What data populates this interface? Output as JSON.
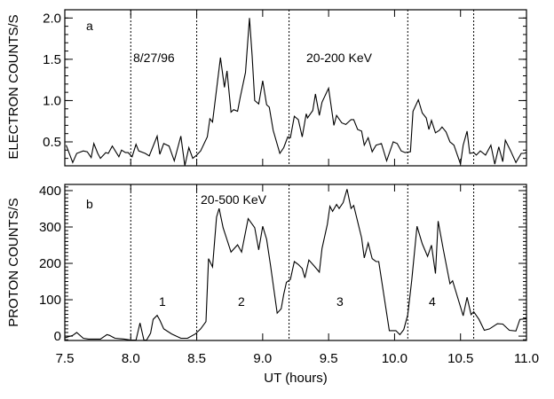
{
  "chart_data": [
    {
      "panel": "a",
      "type": "line",
      "panel_label": "a",
      "ylabel": "ELECTRON COUNTS/S",
      "xlabel": "",
      "xlim": [
        7.5,
        11.0
      ],
      "ylim": [
        0.21,
        2.1
      ],
      "yticks": [
        0.5,
        1.0,
        1.5,
        2.0
      ],
      "ytick_labels": [
        "0.5",
        "1.0",
        "1.5",
        "2.0"
      ],
      "yminor_step": 0.1,
      "annotations": [
        {
          "text": "8/27/96"
        },
        {
          "text": "20-200 KeV"
        }
      ],
      "vlines": [
        8.0,
        8.5,
        9.2,
        10.1,
        10.6
      ],
      "series": [
        {
          "name": "electrons 20-200 KeV",
          "x": [
            7.51,
            7.56,
            7.59,
            7.64,
            7.67,
            7.7,
            7.72,
            7.75,
            7.77,
            7.81,
            7.83,
            7.86,
            7.91,
            7.93,
            7.96,
            7.98,
            8.01,
            8.04,
            8.06,
            8.11,
            8.14,
            8.2,
            8.22,
            8.25,
            8.29,
            8.33,
            8.38,
            8.41,
            8.44,
            8.47,
            8.5,
            8.53,
            8.58,
            8.6,
            8.62,
            8.68,
            8.71,
            8.73,
            8.76,
            8.78,
            8.81,
            8.83,
            8.87,
            8.9,
            8.92,
            8.94,
            8.97,
            9.0,
            9.03,
            9.05,
            9.08,
            9.13,
            9.16,
            9.19,
            9.21,
            9.24,
            9.27,
            9.3,
            9.33,
            9.34,
            9.38,
            9.4,
            9.43,
            9.45,
            9.5,
            9.54,
            9.56,
            9.6,
            9.63,
            9.67,
            9.69,
            9.72,
            9.75,
            9.77,
            9.8,
            9.83,
            9.86,
            9.9,
            9.94,
            9.99,
            10.02,
            10.05,
            10.08,
            10.12,
            10.14,
            10.18,
            10.21,
            10.24,
            10.26,
            10.28,
            10.31,
            10.34,
            10.36,
            10.39,
            10.42,
            10.45,
            10.5,
            10.52,
            10.55,
            10.57,
            10.6,
            10.62,
            10.65,
            10.69,
            10.73,
            10.76,
            10.79,
            10.82,
            10.84,
            10.88,
            10.92,
            10.96,
            10.98,
            11.0
          ],
          "y": [
            0.46,
            0.25,
            0.36,
            0.39,
            0.38,
            0.31,
            0.48,
            0.36,
            0.3,
            0.37,
            0.36,
            0.45,
            0.32,
            0.4,
            0.37,
            0.37,
            0.32,
            0.47,
            0.39,
            0.36,
            0.33,
            0.57,
            0.35,
            0.48,
            0.45,
            0.27,
            0.57,
            0.21,
            0.43,
            0.3,
            0.34,
            0.39,
            0.56,
            0.78,
            0.74,
            1.52,
            1.16,
            1.36,
            0.86,
            0.89,
            0.87,
            1.04,
            1.34,
            2.0,
            1.54,
            1.0,
            0.96,
            1.24,
            0.95,
            0.92,
            0.64,
            0.36,
            0.43,
            0.56,
            0.55,
            0.81,
            0.77,
            0.56,
            0.84,
            0.79,
            0.88,
            1.08,
            0.82,
            0.98,
            1.15,
            0.7,
            0.82,
            0.73,
            0.71,
            0.77,
            0.77,
            0.65,
            0.63,
            0.46,
            0.55,
            0.38,
            0.46,
            0.48,
            0.27,
            0.5,
            0.48,
            0.39,
            0.37,
            0.38,
            0.87,
            1.01,
            0.85,
            0.79,
            0.65,
            0.76,
            0.61,
            0.64,
            0.68,
            0.62,
            0.5,
            0.46,
            0.23,
            0.46,
            0.63,
            0.36,
            0.37,
            0.34,
            0.39,
            0.34,
            0.46,
            0.23,
            0.44,
            0.26,
            0.52,
            0.39,
            0.25,
            0.36,
            0.36,
            0.37
          ]
        }
      ]
    },
    {
      "panel": "b",
      "type": "line",
      "panel_label": "b",
      "ylabel": "PROTON COUNTS/S",
      "xlabel": "UT (hours)",
      "xlim": [
        7.5,
        11.0
      ],
      "ylim": [
        -12,
        417
      ],
      "xticks": [
        7.5,
        8.0,
        8.5,
        9.0,
        9.5,
        10.0,
        10.5,
        11.0
      ],
      "xtick_labels": [
        "7.5",
        "8.0",
        "8.5",
        "9.0",
        "9.5",
        "10.0",
        "10.5",
        "11.0"
      ],
      "yticks": [
        0,
        100,
        200,
        300,
        400
      ],
      "ytick_labels": [
        "0",
        "100",
        "200",
        "300",
        "400"
      ],
      "yminor_step": 10,
      "annotations": [
        {
          "text": "20-500 KeV"
        },
        {
          "text": "1"
        },
        {
          "text": "2"
        },
        {
          "text": "3"
        },
        {
          "text": "4"
        }
      ],
      "vlines": [
        8.0,
        8.5,
        9.2,
        10.1,
        10.6
      ],
      "series": [
        {
          "name": "protons 20-500 KeV",
          "x": [
            7.5,
            7.56,
            7.59,
            7.64,
            7.68,
            7.77,
            7.82,
            7.84,
            7.88,
            7.95,
            8.0,
            8.04,
            8.07,
            8.1,
            8.12,
            8.15,
            8.17,
            8.2,
            8.22,
            8.25,
            8.31,
            8.38,
            8.43,
            8.49,
            8.53,
            8.57,
            8.59,
            8.62,
            8.65,
            8.67,
            8.7,
            8.76,
            8.81,
            8.84,
            8.89,
            8.94,
            8.97,
            9.0,
            9.03,
            9.06,
            9.11,
            9.14,
            9.16,
            9.18,
            9.21,
            9.24,
            9.27,
            9.3,
            9.32,
            9.35,
            9.39,
            9.43,
            9.45,
            9.49,
            9.51,
            9.53,
            9.56,
            9.58,
            9.61,
            9.64,
            9.67,
            9.69,
            9.72,
            9.75,
            9.77,
            9.8,
            9.83,
            9.86,
            9.88,
            9.96,
            10.01,
            10.04,
            10.07,
            10.1,
            10.13,
            10.17,
            10.21,
            10.25,
            10.28,
            10.31,
            10.33,
            10.37,
            10.42,
            10.44,
            10.46,
            10.52,
            10.55,
            10.58,
            10.6,
            10.64,
            10.68,
            10.72,
            10.78,
            10.82,
            10.87,
            10.92,
            10.95,
            11.0
          ],
          "y": [
            -5,
            2,
            10,
            -6,
            -8,
            -8,
            4,
            2,
            -6,
            -8,
            -11,
            -11,
            36,
            -11,
            -11,
            8,
            46,
            57,
            44,
            20,
            6,
            -6,
            -6,
            6,
            20,
            40,
            213,
            190,
            327,
            351,
            298,
            231,
            251,
            231,
            323,
            298,
            237,
            302,
            266,
            193,
            63,
            75,
            115,
            148,
            156,
            205,
            197,
            186,
            160,
            209,
            193,
            176,
            241,
            307,
            357,
            343,
            362,
            351,
            367,
            404,
            351,
            359,
            315,
            270,
            215,
            256,
            213,
            205,
            205,
            15,
            15,
            4,
            18,
            59,
            152,
            302,
            254,
            219,
            250,
            172,
            316,
            237,
            144,
            152,
            128,
            56,
            107,
            59,
            67,
            46,
            16,
            20,
            34,
            33,
            16,
            14,
            46,
            48
          ]
        }
      ]
    }
  ]
}
